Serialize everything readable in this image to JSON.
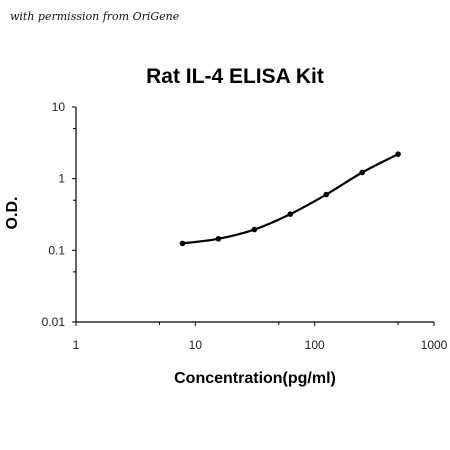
{
  "credit": "with permission from OriGene",
  "chart_data": {
    "type": "line",
    "title": "Rat IL-4 ELISA Kit",
    "xlabel": "Concentration(pg/ml)",
    "ylabel": "O.D.",
    "xscale": "log",
    "yscale": "log",
    "xlim": [
      1,
      1000
    ],
    "ylim": [
      0.01,
      10
    ],
    "xticks": [
      "1",
      "10",
      "100",
      "1000"
    ],
    "yticks": [
      "0.01",
      "0.1",
      "1",
      "10"
    ],
    "grid": false,
    "series": [
      {
        "color": "#000000",
        "x": [
          7.8,
          15.6,
          31.25,
          62.5,
          125,
          250,
          500
        ],
        "y": [
          0.125,
          0.145,
          0.195,
          0.32,
          0.6,
          1.22,
          2.2
        ]
      }
    ]
  }
}
